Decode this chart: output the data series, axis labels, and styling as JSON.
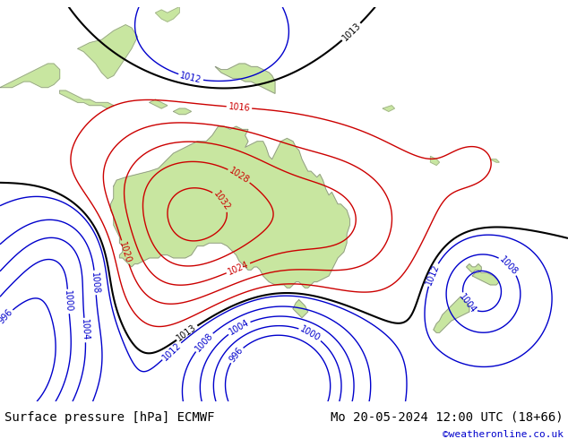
{
  "title_left": "Surface pressure [hPa] ECMWF",
  "title_right": "Mo 20-05-2024 12:00 UTC (18+66)",
  "copyright": "©weatheronline.co.uk",
  "bg_color": "#e8e8e8",
  "land_color": "#c8e6a0",
  "ocean_color": "#e8e8e8",
  "coast_color": "#888888",
  "font_size_title": 10,
  "font_size_label": 7,
  "font_size_copyright": 8,
  "extent": [
    95,
    190,
    -58,
    8
  ],
  "pressure_systems": {
    "highs": [
      {
        "lon": 128,
        "lat": -26,
        "strength": 22,
        "spread": 20
      },
      {
        "lon": 150,
        "lat": -28,
        "strength": 14,
        "spread": 16
      }
    ],
    "lows": [
      {
        "lon": 143,
        "lat": -52,
        "strength": 18,
        "spread": 15
      },
      {
        "lon": 103,
        "lat": -42,
        "strength": 16,
        "spread": 14
      },
      {
        "lon": 106,
        "lat": -30,
        "strength": 9,
        "spread": 10
      },
      {
        "lon": 176,
        "lat": -40,
        "strength": 9,
        "spread": 9
      },
      {
        "lon": 182,
        "lat": -48,
        "strength": 7,
        "spread": 7
      },
      {
        "lon": 97,
        "lat": -47,
        "strength": 14,
        "spread": 10
      }
    ]
  },
  "contour_levels_red": [
    1016,
    1020,
    1024,
    1028,
    1032
  ],
  "contour_levels_blue": [
    996,
    1000,
    1004,
    1008,
    1012
  ],
  "contour_level_black": [
    1013
  ],
  "colors": {
    "red": "#cc0000",
    "blue": "#0000cc",
    "black": "#000000"
  }
}
